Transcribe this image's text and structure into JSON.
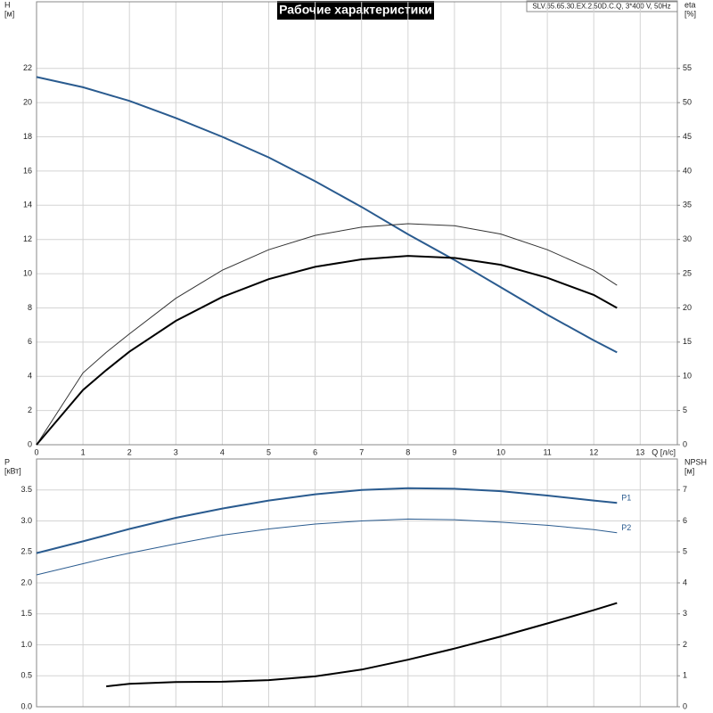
{
  "title": "Рабочие характеристики",
  "model": "SLV.65.65.30.EX.2.50D.C.Q, 3*400 V, 50Hz",
  "chart_data": [
    {
      "type": "line",
      "x_label": "Q [л/с]",
      "y_label": "H",
      "y_unit": "[м]",
      "y2_label": "eta",
      "y2_unit": "[%]",
      "x": [
        0,
        1,
        1.5,
        2,
        3,
        4,
        5,
        6,
        7,
        8,
        9,
        10,
        11,
        12,
        12.5
      ],
      "xlim": [
        0,
        13.8
      ],
      "xticks": [
        0,
        1,
        2,
        3,
        4,
        5,
        6,
        7,
        8,
        9,
        10,
        11,
        12,
        13
      ],
      "x_tick_labels": true,
      "ylim": [
        0,
        26
      ],
      "yticks": [
        0,
        2,
        4,
        6,
        8,
        10,
        12,
        14,
        16,
        18,
        20,
        22
      ],
      "y2lim": [
        0,
        65
      ],
      "y2ticks": [
        0,
        5,
        10,
        15,
        20,
        25,
        30,
        35,
        40,
        45,
        50,
        55
      ],
      "grid": true,
      "series": [
        {
          "color": "#2a5b8f",
          "width": 2,
          "values": [
            21.5,
            20.9,
            20.5,
            20.1,
            19.1,
            18.0,
            16.8,
            15.4,
            13.9,
            12.3,
            10.8,
            9.2,
            7.6,
            6.1,
            5.4
          ]
        },
        {
          "color": "#333333",
          "width": 1,
          "axis": "y2",
          "values": [
            0,
            10.5,
            13.5,
            16.2,
            21.4,
            25.5,
            28.5,
            30.6,
            31.8,
            32.3,
            32.0,
            30.8,
            28.5,
            25.5,
            23.3
          ]
        },
        {
          "color": "#000000",
          "width": 2,
          "axis": "y2",
          "values": [
            0,
            8.0,
            10.9,
            13.6,
            18.1,
            21.6,
            24.2,
            26.0,
            27.1,
            27.6,
            27.3,
            26.3,
            24.4,
            21.9,
            20.0
          ]
        }
      ]
    },
    {
      "type": "line",
      "y_label": "P",
      "y_unit": "[кВт]",
      "y2_label": "NPSH",
      "y2_unit": "[м]",
      "x": [
        0,
        1,
        1.5,
        2,
        3,
        4,
        5,
        6,
        7,
        8,
        9,
        10,
        11,
        12,
        12.5
      ],
      "xlim": [
        0,
        13.8
      ],
      "xticks": [
        0,
        1,
        2,
        3,
        4,
        5,
        6,
        7,
        8,
        9,
        10,
        11,
        12,
        13
      ],
      "x_tick_labels": false,
      "ylim": [
        0,
        4
      ],
      "yticks": [
        {
          "value": 0,
          "label": "0.0"
        },
        0.5,
        {
          "value": 1,
          "label": "1.0"
        },
        1.5,
        {
          "value": 2,
          "label": "2.0"
        },
        2.5,
        {
          "value": 3,
          "label": "3.0"
        },
        3.5
      ],
      "y2lim": [
        0,
        8
      ],
      "y2ticks": [
        0,
        1,
        2,
        3,
        4,
        5,
        6,
        7
      ],
      "grid": true,
      "series": [
        {
          "name": "P1",
          "color": "#2a5b8f",
          "width": 2,
          "values": [
            2.48,
            2.67,
            2.77,
            2.87,
            3.05,
            3.2,
            3.33,
            3.43,
            3.5,
            3.53,
            3.52,
            3.48,
            3.41,
            3.33,
            3.29
          ]
        },
        {
          "name": "P2",
          "color": "#2a5b8f",
          "width": 1,
          "values": [
            2.13,
            2.31,
            2.4,
            2.48,
            2.63,
            2.77,
            2.87,
            2.95,
            3.0,
            3.03,
            3.02,
            2.98,
            2.93,
            2.86,
            2.81
          ]
        },
        {
          "color": "#000000",
          "width": 2,
          "axis": "y2",
          "values": [
            null,
            null,
            0.66,
            0.74,
            0.8,
            0.81,
            0.86,
            0.98,
            1.2,
            1.52,
            1.88,
            2.27,
            2.69,
            3.12,
            3.35
          ]
        }
      ]
    }
  ]
}
